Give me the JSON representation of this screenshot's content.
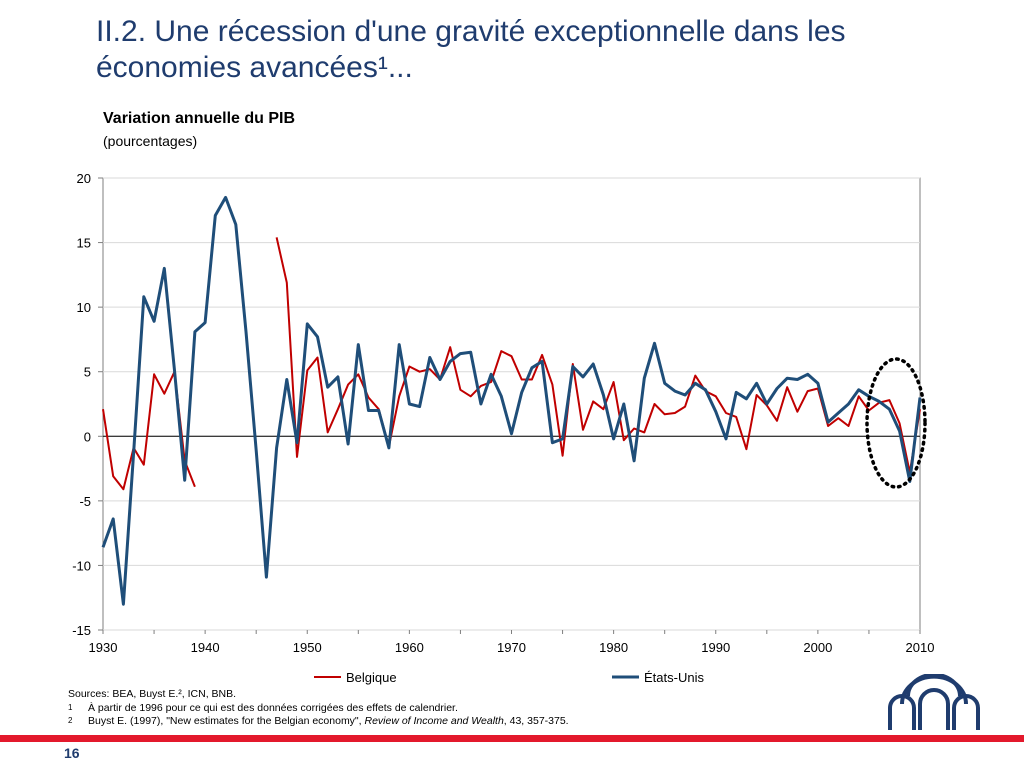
{
  "slide": {
    "title": "II.2. Une récession d'une gravité exceptionnelle dans les économies avancées¹...",
    "page_number": "16"
  },
  "chart_data": {
    "type": "line",
    "title": "Variation annuelle du PIB",
    "subtitle": "(pourcentages)",
    "xlim": [
      1930,
      2010
    ],
    "ylim": [
      -15,
      20
    ],
    "x_ticks": [
      1930,
      1940,
      1950,
      1960,
      1970,
      1980,
      1990,
      2000,
      2010
    ],
    "y_ticks": [
      -15,
      -10,
      -5,
      0,
      5,
      10,
      15,
      20
    ],
    "x_tick_labels": [
      "1930",
      "1940",
      "1950",
      "1960",
      "1970",
      "1980",
      "1990",
      "2000",
      "2010"
    ],
    "y_tick_labels": [
      "-15",
      "-10",
      "-5",
      "0",
      "5",
      "10",
      "15",
      "20"
    ],
    "legend_position": "bottom",
    "annotation": "dotted ellipse around 2007-2010",
    "series": [
      {
        "name": "Belgique",
        "color": "#c00000",
        "segments": [
          [
            [
              1930,
              2.1
            ],
            [
              1931,
              -3.1
            ],
            [
              1932,
              -4.1
            ],
            [
              1933,
              -0.9
            ],
            [
              1934,
              -2.2
            ],
            [
              1935,
              4.8
            ],
            [
              1936,
              3.3
            ],
            [
              1937,
              5.0
            ],
            [
              1938,
              -1.9
            ],
            [
              1939,
              -3.9
            ]
          ],
          [
            [
              1947,
              15.4
            ],
            [
              1948,
              11.9
            ],
            [
              1949,
              -1.6
            ],
            [
              1950,
              5.1
            ],
            [
              1951,
              6.1
            ],
            [
              1952,
              0.3
            ],
            [
              1953,
              2.1
            ],
            [
              1954,
              4.0
            ],
            [
              1955,
              4.8
            ],
            [
              1956,
              3.0
            ],
            [
              1957,
              2.1
            ],
            [
              1958,
              -0.8
            ],
            [
              1959,
              3.1
            ],
            [
              1960,
              5.4
            ],
            [
              1961,
              5.0
            ],
            [
              1962,
              5.2
            ],
            [
              1963,
              4.4
            ],
            [
              1964,
              6.9
            ],
            [
              1965,
              3.6
            ],
            [
              1966,
              3.1
            ],
            [
              1967,
              3.9
            ],
            [
              1968,
              4.2
            ],
            [
              1969,
              6.6
            ],
            [
              1970,
              6.2
            ],
            [
              1971,
              4.4
            ],
            [
              1972,
              4.4
            ],
            [
              1973,
              6.3
            ],
            [
              1974,
              4.0
            ],
            [
              1975,
              -1.5
            ],
            [
              1976,
              5.6
            ],
            [
              1977,
              0.5
            ],
            [
              1978,
              2.7
            ],
            [
              1979,
              2.1
            ],
            [
              1980,
              4.2
            ],
            [
              1981,
              -0.3
            ],
            [
              1982,
              0.6
            ],
            [
              1983,
              0.3
            ],
            [
              1984,
              2.5
            ],
            [
              1985,
              1.7
            ],
            [
              1986,
              1.8
            ],
            [
              1987,
              2.3
            ],
            [
              1988,
              4.7
            ],
            [
              1989,
              3.5
            ],
            [
              1990,
              3.1
            ],
            [
              1991,
              1.8
            ],
            [
              1992,
              1.5
            ],
            [
              1993,
              -1.0
            ],
            [
              1994,
              3.2
            ],
            [
              1995,
              2.4
            ],
            [
              1996,
              1.2
            ],
            [
              1997,
              3.8
            ],
            [
              1998,
              1.9
            ],
            [
              1999,
              3.5
            ],
            [
              2000,
              3.7
            ],
            [
              2001,
              0.8
            ],
            [
              2002,
              1.4
            ],
            [
              2003,
              0.8
            ],
            [
              2004,
              3.1
            ],
            [
              2005,
              2.0
            ],
            [
              2006,
              2.6
            ],
            [
              2007,
              2.8
            ],
            [
              2008,
              1.0
            ],
            [
              2009,
              -2.8
            ],
            [
              2010,
              2.1
            ]
          ]
        ]
      },
      {
        "name": "États-Unis",
        "color": "#1f4e79",
        "segments": [
          [
            [
              1930,
              -8.6
            ],
            [
              1931,
              -6.4
            ],
            [
              1932,
              -13.0
            ],
            [
              1933,
              -1.3
            ],
            [
              1934,
              10.8
            ],
            [
              1935,
              8.9
            ],
            [
              1936,
              13.0
            ],
            [
              1937,
              5.1
            ],
            [
              1938,
              -3.4
            ],
            [
              1939,
              8.1
            ],
            [
              1940,
              8.8
            ],
            [
              1941,
              17.1
            ],
            [
              1942,
              18.5
            ],
            [
              1943,
              16.4
            ],
            [
              1944,
              8.1
            ],
            [
              1945,
              -1.1
            ],
            [
              1946,
              -10.9
            ],
            [
              1947,
              -0.9
            ],
            [
              1948,
              4.4
            ],
            [
              1949,
              -0.5
            ],
            [
              1950,
              8.7
            ],
            [
              1951,
              7.7
            ],
            [
              1952,
              3.8
            ],
            [
              1953,
              4.6
            ],
            [
              1954,
              -0.6
            ],
            [
              1955,
              7.1
            ],
            [
              1956,
              2.0
            ],
            [
              1957,
              2.0
            ],
            [
              1958,
              -0.9
            ],
            [
              1959,
              7.1
            ],
            [
              1960,
              2.5
            ],
            [
              1961,
              2.3
            ],
            [
              1962,
              6.1
            ],
            [
              1963,
              4.4
            ],
            [
              1964,
              5.8
            ],
            [
              1965,
              6.4
            ],
            [
              1966,
              6.5
            ],
            [
              1967,
              2.5
            ],
            [
              1968,
              4.8
            ],
            [
              1969,
              3.1
            ],
            [
              1970,
              0.2
            ],
            [
              1971,
              3.4
            ],
            [
              1972,
              5.3
            ],
            [
              1973,
              5.8
            ],
            [
              1974,
              -0.5
            ],
            [
              1975,
              -0.2
            ],
            [
              1976,
              5.4
            ],
            [
              1977,
              4.6
            ],
            [
              1978,
              5.6
            ],
            [
              1979,
              3.2
            ],
            [
              1980,
              -0.2
            ],
            [
              1981,
              2.5
            ],
            [
              1982,
              -1.9
            ],
            [
              1983,
              4.5
            ],
            [
              1984,
              7.2
            ],
            [
              1985,
              4.1
            ],
            [
              1986,
              3.5
            ],
            [
              1987,
              3.2
            ],
            [
              1988,
              4.1
            ],
            [
              1989,
              3.6
            ],
            [
              1990,
              1.9
            ],
            [
              1991,
              -0.2
            ],
            [
              1992,
              3.4
            ],
            [
              1993,
              2.9
            ],
            [
              1994,
              4.1
            ],
            [
              1995,
              2.5
            ],
            [
              1996,
              3.7
            ],
            [
              1997,
              4.5
            ],
            [
              1998,
              4.4
            ],
            [
              1999,
              4.8
            ],
            [
              2000,
              4.1
            ],
            [
              2001,
              1.1
            ],
            [
              2002,
              1.8
            ],
            [
              2003,
              2.5
            ],
            [
              2004,
              3.6
            ],
            [
              2005,
              3.1
            ],
            [
              2006,
              2.7
            ],
            [
              2007,
              2.1
            ],
            [
              2008,
              0.4
            ],
            [
              2009,
              -3.5
            ],
            [
              2010,
              3.0
            ]
          ]
        ]
      }
    ]
  },
  "sources": {
    "line": "Sources: BEA, Buyst E.², ICN, BNB.",
    "fn1_mark": "1",
    "fn1_text": "À partir de 1996 pour ce qui est des données corrigées des effets de calendrier.",
    "fn2_mark": "2",
    "fn2_text_a": "Buyst E. (1997), \"New estimates for the Belgian economy\", ",
    "fn2_text_italic": "Review of Income and Wealth",
    "fn2_text_b": ", 43, 357-375."
  },
  "colors": {
    "accent_blue": "#1f3c6e",
    "accent_red": "#e3192c"
  },
  "logo": {
    "icon": "bnb-logo-icon"
  }
}
